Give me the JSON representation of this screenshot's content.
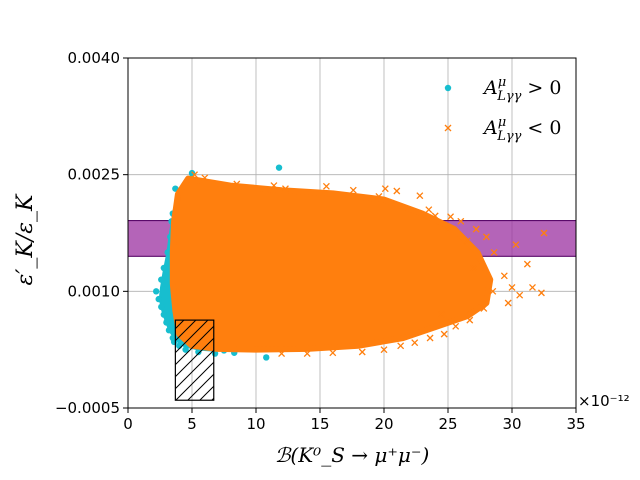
{
  "chart_data": {
    "type": "scatter",
    "title": "",
    "xlabel": "ℬ(K⁰_S → μ⁺μ⁻)",
    "ylabel": "ε′_K/ε_K",
    "x_scale_label": "×10⁻¹²",
    "xlim": [
      0,
      35
    ],
    "ylim": [
      -0.0005,
      0.004
    ],
    "x_ticks": [
      0,
      5,
      10,
      15,
      20,
      25,
      30,
      35
    ],
    "x_tick_labels": [
      "0",
      "5",
      "10",
      "15",
      "20",
      "25",
      "30",
      "35"
    ],
    "y_ticks": [
      -0.0005,
      0.001,
      0.0025,
      0.004
    ],
    "y_tick_labels": [
      "−0.0005",
      "0.0010",
      "0.0025",
      "0.0040"
    ],
    "grid": true,
    "legend_position": "top-right",
    "series": [
      {
        "name": "A^μ_{Lγγ} > 0",
        "legend_label": "A",
        "legend_sub": "Lγγ",
        "legend_sup": "μ",
        "legend_relation": " > 0",
        "marker": "circle",
        "color": "#17becf",
        "points": [
          [
            4.9,
            0.00245
          ],
          [
            5.0,
            0.00252
          ],
          [
            11.8,
            0.00259
          ],
          [
            13.8,
            0.00225
          ],
          [
            14.5,
            0.00218
          ],
          [
            15.2,
            0.00212
          ],
          [
            16.8,
            0.00205
          ],
          [
            3.7,
            0.00232
          ],
          [
            4.2,
            0.00229
          ],
          [
            5.6,
            0.00238
          ],
          [
            6.2,
            0.0024
          ],
          [
            3.5,
            0.002
          ],
          [
            3.3,
            0.0017
          ],
          [
            3.1,
            0.0015
          ],
          [
            2.8,
            0.0013
          ],
          [
            2.6,
            0.00115
          ],
          [
            2.2,
            0.001
          ],
          [
            2.4,
            0.0009
          ],
          [
            2.6,
            0.0008
          ],
          [
            2.8,
            0.0007
          ],
          [
            3.0,
            0.0006
          ],
          [
            3.2,
            0.0005
          ],
          [
            3.5,
            0.0004
          ],
          [
            4.0,
            0.0003
          ],
          [
            3.6,
            0.00035
          ],
          [
            4.5,
            0.00025
          ],
          [
            5.5,
            0.00022
          ],
          [
            6.8,
            0.0002
          ],
          [
            8.3,
            0.00021
          ],
          [
            10.8,
            0.00015
          ],
          [
            7.5,
            0.00024
          ],
          [
            2.9,
            0.0011
          ],
          [
            3.4,
            0.0019
          ],
          [
            4.4,
            0.00215
          ],
          [
            3.9,
            0.00205
          ]
        ]
      },
      {
        "name": "A^μ_{Lγγ} < 0",
        "legend_label": "A",
        "legend_sub": "Lγγ",
        "legend_sup": "μ",
        "legend_relation": " < 0",
        "marker": "x",
        "color": "#ff7f0e",
        "points": [
          [
            5.2,
            0.0025
          ],
          [
            6.0,
            0.00246
          ],
          [
            8.5,
            0.00238
          ],
          [
            11.4,
            0.00236
          ],
          [
            12.3,
            0.00232
          ],
          [
            15.5,
            0.00235
          ],
          [
            17.6,
            0.0023
          ],
          [
            19.6,
            0.00222
          ],
          [
            20.1,
            0.00232
          ],
          [
            21.0,
            0.00229
          ],
          [
            22.8,
            0.00223
          ],
          [
            23.5,
            0.00205
          ],
          [
            24.0,
            0.00197
          ],
          [
            25.2,
            0.00196
          ],
          [
            26.0,
            0.0019
          ],
          [
            27.2,
            0.0018
          ],
          [
            28.0,
            0.0017
          ],
          [
            28.6,
            0.0015
          ],
          [
            29.4,
            0.0012
          ],
          [
            30.0,
            0.00105
          ],
          [
            30.6,
            0.00095
          ],
          [
            31.6,
            0.00105
          ],
          [
            32.3,
            0.00098
          ],
          [
            29.7,
            0.00085
          ],
          [
            27.8,
            0.00078
          ],
          [
            26.7,
            0.00063
          ],
          [
            25.6,
            0.00055
          ],
          [
            24.7,
            0.00045
          ],
          [
            23.6,
            0.0004
          ],
          [
            22.4,
            0.00034
          ],
          [
            21.3,
            0.0003
          ],
          [
            20.0,
            0.00025
          ],
          [
            18.3,
            0.00022
          ],
          [
            16.0,
            0.00021
          ],
          [
            14.0,
            0.0002
          ],
          [
            12.0,
            0.0002
          ],
          [
            32.5,
            0.00175
          ],
          [
            30.3,
            0.0016
          ],
          [
            31.2,
            0.00135
          ],
          [
            26.5,
            0.00165
          ],
          [
            27.0,
            0.0013
          ],
          [
            25.0,
            0.0018
          ],
          [
            24.5,
            0.0007
          ],
          [
            28.5,
            0.001
          ]
        ],
        "cloud_polygon": [
          [
            4.7,
            0.00245
          ],
          [
            8,
            0.00236
          ],
          [
            12,
            0.0023
          ],
          [
            16,
            0.00226
          ],
          [
            20,
            0.00218
          ],
          [
            23,
            0.002
          ],
          [
            25.5,
            0.0018
          ],
          [
            27.3,
            0.0015
          ],
          [
            28.3,
            0.00115
          ],
          [
            28.0,
            0.00085
          ],
          [
            26.5,
            0.00068
          ],
          [
            24.2,
            0.00055
          ],
          [
            21.5,
            0.0004
          ],
          [
            18,
            0.0003
          ],
          [
            14,
            0.00026
          ],
          [
            10,
            0.00025
          ],
          [
            7,
            0.00026
          ],
          [
            5,
            0.0003
          ],
          [
            4.0,
            0.00045
          ],
          [
            3.7,
            0.00075
          ],
          [
            3.5,
            0.0011
          ],
          [
            3.5,
            0.0015
          ],
          [
            3.6,
            0.0019
          ],
          [
            3.9,
            0.00225
          ]
        ]
      }
    ],
    "bands": [
      {
        "name": "measured ε′/ε band",
        "y_range": [
          0.00145,
          0.00191
        ],
        "color": "#9b30a0"
      }
    ],
    "boxes": [
      {
        "name": "hatched excluded region",
        "x_range": [
          3.7,
          6.7
        ],
        "y_range": [
          -0.0004,
          0.00063
        ],
        "hatch": true
      }
    ]
  }
}
